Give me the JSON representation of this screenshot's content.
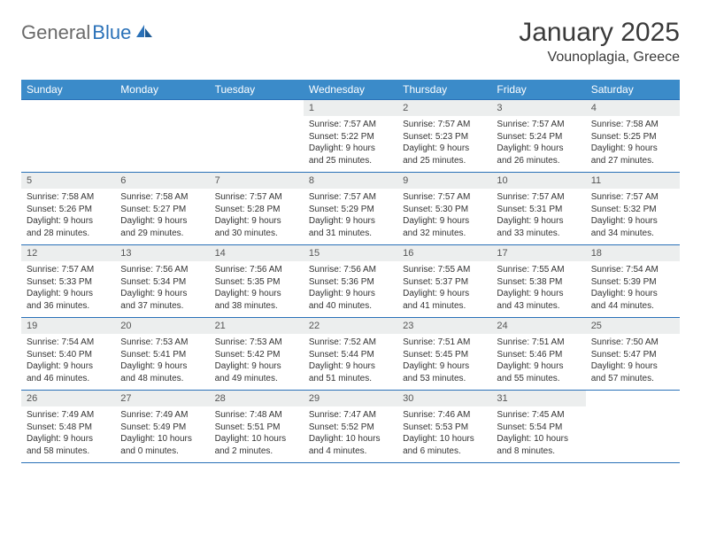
{
  "logo": {
    "general": "General",
    "blue": "Blue"
  },
  "header": {
    "month_title": "January 2025",
    "location": "Vounoplagia, Greece"
  },
  "colors": {
    "header_bg": "#3b8bc9",
    "header_text": "#ffffff",
    "border": "#2a71b8",
    "daynum_bg": "#eceeee",
    "logo_gray": "#6a6a6a",
    "logo_blue": "#2a71b8"
  },
  "day_headers": [
    "Sunday",
    "Monday",
    "Tuesday",
    "Wednesday",
    "Thursday",
    "Friday",
    "Saturday"
  ],
  "weeks": [
    [
      {
        "num": "",
        "lines": []
      },
      {
        "num": "",
        "lines": []
      },
      {
        "num": "",
        "lines": []
      },
      {
        "num": "1",
        "lines": [
          "Sunrise: 7:57 AM",
          "Sunset: 5:22 PM",
          "Daylight: 9 hours",
          "and 25 minutes."
        ]
      },
      {
        "num": "2",
        "lines": [
          "Sunrise: 7:57 AM",
          "Sunset: 5:23 PM",
          "Daylight: 9 hours",
          "and 25 minutes."
        ]
      },
      {
        "num": "3",
        "lines": [
          "Sunrise: 7:57 AM",
          "Sunset: 5:24 PM",
          "Daylight: 9 hours",
          "and 26 minutes."
        ]
      },
      {
        "num": "4",
        "lines": [
          "Sunrise: 7:58 AM",
          "Sunset: 5:25 PM",
          "Daylight: 9 hours",
          "and 27 minutes."
        ]
      }
    ],
    [
      {
        "num": "5",
        "lines": [
          "Sunrise: 7:58 AM",
          "Sunset: 5:26 PM",
          "Daylight: 9 hours",
          "and 28 minutes."
        ]
      },
      {
        "num": "6",
        "lines": [
          "Sunrise: 7:58 AM",
          "Sunset: 5:27 PM",
          "Daylight: 9 hours",
          "and 29 minutes."
        ]
      },
      {
        "num": "7",
        "lines": [
          "Sunrise: 7:57 AM",
          "Sunset: 5:28 PM",
          "Daylight: 9 hours",
          "and 30 minutes."
        ]
      },
      {
        "num": "8",
        "lines": [
          "Sunrise: 7:57 AM",
          "Sunset: 5:29 PM",
          "Daylight: 9 hours",
          "and 31 minutes."
        ]
      },
      {
        "num": "9",
        "lines": [
          "Sunrise: 7:57 AM",
          "Sunset: 5:30 PM",
          "Daylight: 9 hours",
          "and 32 minutes."
        ]
      },
      {
        "num": "10",
        "lines": [
          "Sunrise: 7:57 AM",
          "Sunset: 5:31 PM",
          "Daylight: 9 hours",
          "and 33 minutes."
        ]
      },
      {
        "num": "11",
        "lines": [
          "Sunrise: 7:57 AM",
          "Sunset: 5:32 PM",
          "Daylight: 9 hours",
          "and 34 minutes."
        ]
      }
    ],
    [
      {
        "num": "12",
        "lines": [
          "Sunrise: 7:57 AM",
          "Sunset: 5:33 PM",
          "Daylight: 9 hours",
          "and 36 minutes."
        ]
      },
      {
        "num": "13",
        "lines": [
          "Sunrise: 7:56 AM",
          "Sunset: 5:34 PM",
          "Daylight: 9 hours",
          "and 37 minutes."
        ]
      },
      {
        "num": "14",
        "lines": [
          "Sunrise: 7:56 AM",
          "Sunset: 5:35 PM",
          "Daylight: 9 hours",
          "and 38 minutes."
        ]
      },
      {
        "num": "15",
        "lines": [
          "Sunrise: 7:56 AM",
          "Sunset: 5:36 PM",
          "Daylight: 9 hours",
          "and 40 minutes."
        ]
      },
      {
        "num": "16",
        "lines": [
          "Sunrise: 7:55 AM",
          "Sunset: 5:37 PM",
          "Daylight: 9 hours",
          "and 41 minutes."
        ]
      },
      {
        "num": "17",
        "lines": [
          "Sunrise: 7:55 AM",
          "Sunset: 5:38 PM",
          "Daylight: 9 hours",
          "and 43 minutes."
        ]
      },
      {
        "num": "18",
        "lines": [
          "Sunrise: 7:54 AM",
          "Sunset: 5:39 PM",
          "Daylight: 9 hours",
          "and 44 minutes."
        ]
      }
    ],
    [
      {
        "num": "19",
        "lines": [
          "Sunrise: 7:54 AM",
          "Sunset: 5:40 PM",
          "Daylight: 9 hours",
          "and 46 minutes."
        ]
      },
      {
        "num": "20",
        "lines": [
          "Sunrise: 7:53 AM",
          "Sunset: 5:41 PM",
          "Daylight: 9 hours",
          "and 48 minutes."
        ]
      },
      {
        "num": "21",
        "lines": [
          "Sunrise: 7:53 AM",
          "Sunset: 5:42 PM",
          "Daylight: 9 hours",
          "and 49 minutes."
        ]
      },
      {
        "num": "22",
        "lines": [
          "Sunrise: 7:52 AM",
          "Sunset: 5:44 PM",
          "Daylight: 9 hours",
          "and 51 minutes."
        ]
      },
      {
        "num": "23",
        "lines": [
          "Sunrise: 7:51 AM",
          "Sunset: 5:45 PM",
          "Daylight: 9 hours",
          "and 53 minutes."
        ]
      },
      {
        "num": "24",
        "lines": [
          "Sunrise: 7:51 AM",
          "Sunset: 5:46 PM",
          "Daylight: 9 hours",
          "and 55 minutes."
        ]
      },
      {
        "num": "25",
        "lines": [
          "Sunrise: 7:50 AM",
          "Sunset: 5:47 PM",
          "Daylight: 9 hours",
          "and 57 minutes."
        ]
      }
    ],
    [
      {
        "num": "26",
        "lines": [
          "Sunrise: 7:49 AM",
          "Sunset: 5:48 PM",
          "Daylight: 9 hours",
          "and 58 minutes."
        ]
      },
      {
        "num": "27",
        "lines": [
          "Sunrise: 7:49 AM",
          "Sunset: 5:49 PM",
          "Daylight: 10 hours",
          "and 0 minutes."
        ]
      },
      {
        "num": "28",
        "lines": [
          "Sunrise: 7:48 AM",
          "Sunset: 5:51 PM",
          "Daylight: 10 hours",
          "and 2 minutes."
        ]
      },
      {
        "num": "29",
        "lines": [
          "Sunrise: 7:47 AM",
          "Sunset: 5:52 PM",
          "Daylight: 10 hours",
          "and 4 minutes."
        ]
      },
      {
        "num": "30",
        "lines": [
          "Sunrise: 7:46 AM",
          "Sunset: 5:53 PM",
          "Daylight: 10 hours",
          "and 6 minutes."
        ]
      },
      {
        "num": "31",
        "lines": [
          "Sunrise: 7:45 AM",
          "Sunset: 5:54 PM",
          "Daylight: 10 hours",
          "and 8 minutes."
        ]
      },
      {
        "num": "",
        "lines": []
      }
    ]
  ]
}
